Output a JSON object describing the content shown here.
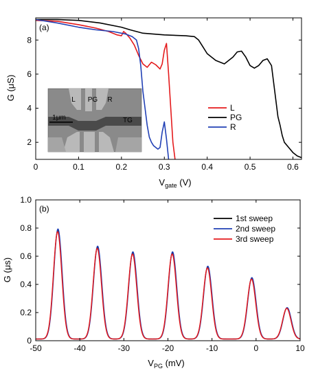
{
  "chart_data": [
    {
      "panel_label": "(a)",
      "type": "line",
      "xlabel_main": "V",
      "xlabel_sub": "gate",
      "xlabel_unit": " (V)",
      "ylabel": "G (μS)",
      "xlim": [
        0,
        0.62
      ],
      "ylim": [
        1,
        9.3
      ],
      "xticks": [
        0,
        0.1,
        0.2,
        0.3,
        0.4,
        0.5,
        0.6
      ],
      "xtick_labels": [
        "0",
        "0.1",
        "0.2",
        "0.3",
        "0.4",
        "0.5",
        "0.6"
      ],
      "yticks": [
        2,
        4,
        6,
        8
      ],
      "ytick_labels": [
        "2",
        "4",
        "6",
        "8"
      ],
      "legend_position": "center-right",
      "series": [
        {
          "name": "L",
          "color": "#e41a1c",
          "x": [
            0,
            0.05,
            0.1,
            0.14,
            0.17,
            0.19,
            0.2,
            0.205,
            0.21,
            0.22,
            0.23,
            0.24,
            0.25,
            0.26,
            0.27,
            0.28,
            0.29,
            0.295,
            0.3,
            0.305,
            0.31,
            0.315,
            0.32,
            0.325
          ],
          "y": [
            9.15,
            9.1,
            8.9,
            8.7,
            8.5,
            8.3,
            8.25,
            8.5,
            8.4,
            8.1,
            7.7,
            7.1,
            6.6,
            6.4,
            6.7,
            6.55,
            6.3,
            6.6,
            7.4,
            7.8,
            6.0,
            4.0,
            2.0,
            1.0
          ]
        },
        {
          "name": "PG",
          "color": "#000000",
          "x": [
            0,
            0.05,
            0.1,
            0.15,
            0.2,
            0.22,
            0.25,
            0.3,
            0.35,
            0.37,
            0.38,
            0.39,
            0.4,
            0.42,
            0.44,
            0.46,
            0.47,
            0.48,
            0.49,
            0.5,
            0.51,
            0.52,
            0.53,
            0.54,
            0.55,
            0.555,
            0.56,
            0.565,
            0.57,
            0.575,
            0.58,
            0.59,
            0.6,
            0.61,
            0.62
          ],
          "y": [
            9.2,
            9.2,
            9.15,
            9.0,
            8.75,
            8.6,
            8.4,
            8.3,
            8.25,
            8.2,
            8.0,
            7.6,
            7.2,
            6.8,
            6.6,
            7.0,
            7.3,
            7.35,
            7.0,
            6.5,
            6.35,
            6.5,
            6.8,
            6.9,
            6.5,
            5.5,
            4.5,
            3.5,
            3.0,
            2.4,
            2.0,
            1.7,
            1.4,
            1.2,
            1.1
          ]
        },
        {
          "name": "R",
          "color": "#2140b5",
          "x": [
            0,
            0.05,
            0.1,
            0.14,
            0.18,
            0.21,
            0.225,
            0.235,
            0.24,
            0.245,
            0.25,
            0.255,
            0.26,
            0.265,
            0.27,
            0.275,
            0.28,
            0.285,
            0.29,
            0.295,
            0.3,
            0.305,
            0.31
          ],
          "y": [
            9.2,
            9.0,
            8.75,
            8.6,
            8.5,
            8.35,
            8.2,
            8.0,
            7.5,
            6.5,
            5.0,
            4.0,
            3.0,
            2.3,
            2.0,
            1.8,
            1.7,
            1.6,
            1.7,
            2.6,
            3.2,
            2.2,
            1.0
          ]
        }
      ],
      "inset": {
        "labels": [
          "L",
          "PG",
          "R",
          "TG"
        ],
        "scale_label": "1μm"
      }
    },
    {
      "panel_label": "(b)",
      "type": "line",
      "xlabel_main": "V",
      "xlabel_sub": "PG",
      "xlabel_unit": " (mV)",
      "ylabel": "G (μs)",
      "xlim": [
        -50,
        10
      ],
      "ylim": [
        0,
        1.0
      ],
      "xticks": [
        -50,
        -40,
        -30,
        -20,
        -10,
        0,
        10
      ],
      "xtick_labels": [
        "-50",
        "-40",
        "-30",
        "-20",
        "-10",
        "0",
        "10"
      ],
      "yticks": [
        0,
        0.2,
        0.4,
        0.6,
        0.8,
        1.0
      ],
      "ytick_labels": [
        "0",
        "0.2",
        "0.4",
        "0.6",
        "0.8",
        "1.0"
      ],
      "legend_position": "top-right",
      "peaks": [
        {
          "x": -45.0,
          "height": 0.77
        },
        {
          "x": -36.0,
          "height": 0.65
        },
        {
          "x": -28.0,
          "height": 0.61
        },
        {
          "x": -19.0,
          "height": 0.61
        },
        {
          "x": -11.0,
          "height": 0.51
        },
        {
          "x": -1.0,
          "height": 0.43
        },
        {
          "x": 7.0,
          "height": 0.22
        }
      ],
      "series": [
        {
          "name": "1st  sweep",
          "color": "#000000"
        },
        {
          "name": "2nd sweep",
          "color": "#2140b5"
        },
        {
          "name": "3rd  sweep",
          "color": "#e41a1c"
        }
      ]
    }
  ]
}
